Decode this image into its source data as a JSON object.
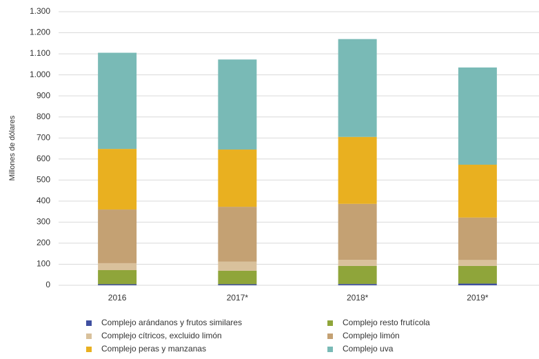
{
  "chart_data": {
    "type": "stacked-bar",
    "y_label": "Millones de dólares",
    "categories": [
      "2016",
      "2017*",
      "2018*",
      "2019*"
    ],
    "series": [
      {
        "name": "Complejo arándanos y frutos similares",
        "color": "#3f4fa0",
        "values": [
          5,
          5,
          6,
          8
        ]
      },
      {
        "name": "Complejo resto frutícola",
        "color": "#8fa53a",
        "values": [
          67,
          64,
          86,
          84
        ]
      },
      {
        "name": "Complejo cítricos, excluido limón",
        "color": "#d9c19c",
        "values": [
          33,
          43,
          29,
          28
        ]
      },
      {
        "name": "Complejo limón",
        "color": "#c4a173",
        "values": [
          255,
          261,
          266,
          202
        ]
      },
      {
        "name": "Complejo peras y manzanas",
        "color": "#e9b020",
        "values": [
          288,
          272,
          318,
          251
        ]
      },
      {
        "name": "Complejo uva",
        "color": "#79bab6",
        "values": [
          457,
          428,
          465,
          462
        ]
      }
    ],
    "ylim": [
      0,
      1300
    ],
    "yticks": [
      0,
      100,
      200,
      300,
      400,
      500,
      600,
      700,
      800,
      900,
      {
        "value": 1000,
        "label": "1.000"
      },
      {
        "value": 1100,
        "label": "1.100"
      },
      {
        "value": 1200,
        "label": "1.200"
      },
      {
        "value": 1300,
        "label": "1.300"
      }
    ],
    "grid": true
  }
}
